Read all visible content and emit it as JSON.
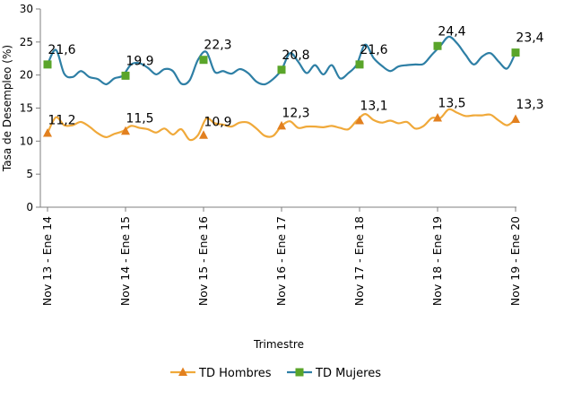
{
  "chart_data": {
    "type": "line",
    "ylabel": "Tasa de Desempleo (%)",
    "xlabel": "Trimestre",
    "ylim": [
      0,
      30
    ],
    "yticks": [
      0,
      5,
      10,
      15,
      20,
      25,
      30
    ],
    "categories": [
      "Nov 13 - Ene 14",
      "Nov 14 - Ene 15",
      "Nov 15 - Ene 16",
      "Nov 16 - Ene 17",
      "Nov 17 - Ene 18",
      "Nov 18 - Ene 19",
      "Nov 19 - Ene 20"
    ],
    "grid": false,
    "legend_position": "bottom-center",
    "series": [
      {
        "name": "TD Hombres",
        "color": "#f0a93a",
        "marker_color": "#e2801f",
        "marker": "triangle",
        "monthly_values": [
          11.2,
          13.6,
          12.4,
          12.4,
          12.9,
          12.2,
          11.2,
          10.6,
          11.1,
          11.5,
          12.3,
          12.0,
          11.8,
          11.3,
          11.9,
          11.0,
          11.8,
          10.2,
          10.9,
          13.4,
          12.7,
          12.5,
          12.2,
          12.8,
          12.8,
          11.9,
          10.8,
          10.8,
          12.3,
          13.0,
          12.0,
          12.2,
          12.2,
          12.1,
          12.3,
          12.0,
          11.8,
          13.1,
          14.1,
          13.2,
          12.8,
          13.1,
          12.7,
          12.9,
          11.9,
          12.3,
          13.5,
          13.5,
          14.8,
          14.3,
          13.8,
          13.9,
          13.9,
          14.0,
          13.1,
          12.4,
          13.3
        ],
        "labeled_values": [
          11.2,
          11.5,
          10.9,
          12.3,
          13.1,
          13.5,
          13.3
        ],
        "labels": [
          "11,2",
          "11,5",
          "10,9",
          "12,3",
          "13,1",
          "13,5",
          "13,3"
        ]
      },
      {
        "name": "TD Mujeres",
        "color": "#2e7fa5",
        "marker_color": "#5aa52a",
        "marker": "square",
        "monthly_values": [
          21.6,
          23.8,
          20.2,
          19.7,
          20.6,
          19.7,
          19.4,
          18.6,
          19.5,
          19.9,
          21.6,
          21.8,
          21.1,
          20.1,
          20.9,
          20.6,
          18.7,
          19.2,
          22.3,
          23.5,
          20.5,
          20.6,
          20.2,
          20.9,
          20.3,
          19.0,
          18.6,
          19.4,
          20.8,
          23.3,
          22.0,
          20.3,
          21.5,
          20.1,
          21.5,
          19.5,
          20.3,
          21.6,
          24.6,
          22.6,
          21.4,
          20.6,
          21.3,
          21.5,
          21.6,
          21.7,
          23.1,
          24.4,
          25.8,
          24.8,
          23.1,
          21.6,
          22.8,
          23.3,
          22.0,
          21.0,
          23.4
        ],
        "labeled_values": [
          21.6,
          19.9,
          22.3,
          20.8,
          21.6,
          24.4,
          23.4
        ],
        "labels": [
          "21,6",
          "19,9",
          "22,3",
          "20,8",
          "21,6",
          "24,4",
          "23,4"
        ]
      }
    ]
  }
}
